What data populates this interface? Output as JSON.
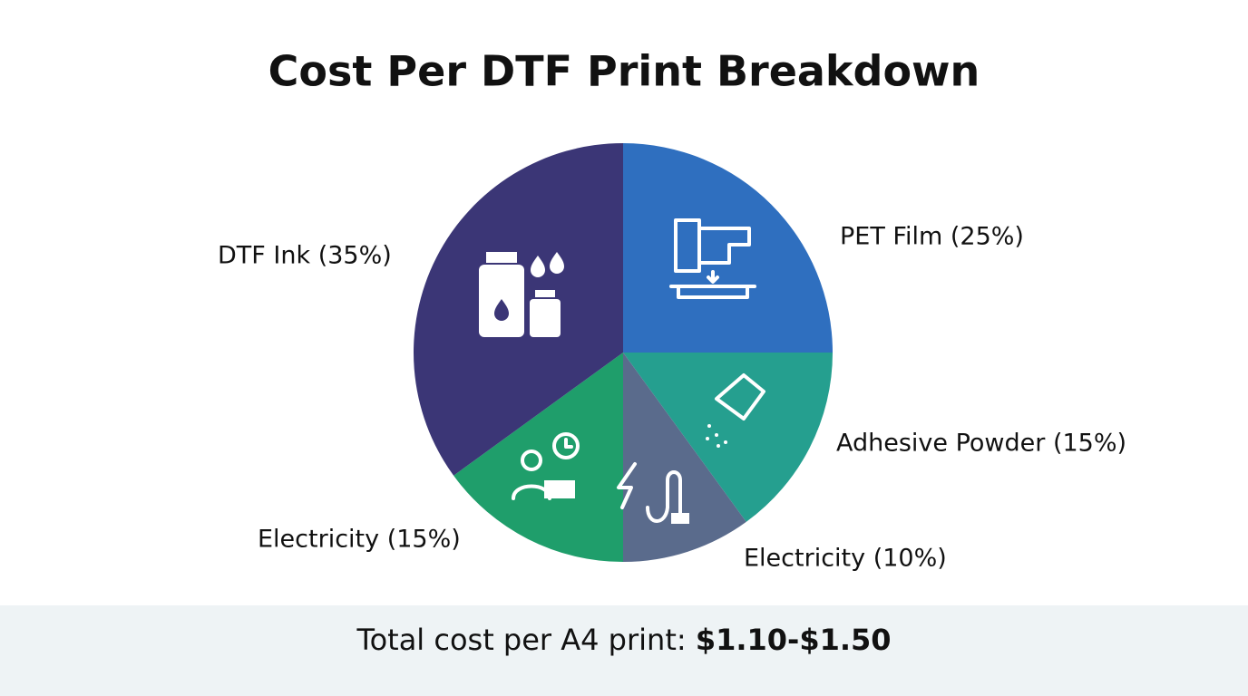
{
  "chart_data": {
    "type": "pie",
    "title": "Cost Per DTF Print Breakdown",
    "categories": [
      "PET Film (25%)",
      "Adhesive Powder (15%)",
      "Electricity (10%)",
      "Electricity (15%)",
      "DTF Ink (35%)"
    ],
    "values": [
      25,
      15,
      10,
      15,
      35
    ],
    "colors": [
      "#2f6fbf",
      "#259f8f",
      "#5a6b8c",
      "#1f9e6b",
      "#3b3676"
    ]
  },
  "footer": {
    "label": "Total cost per A4 print:",
    "value": "$1.10-$1.50"
  }
}
